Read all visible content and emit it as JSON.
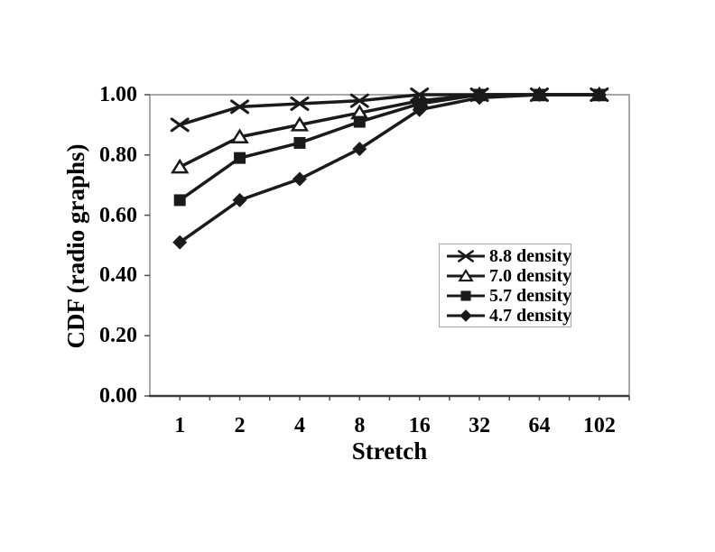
{
  "figure": {
    "background": "#ffffff"
  },
  "chart_data": {
    "type": "line",
    "title": "",
    "xlabel": "Stretch",
    "ylabel": "CDF (radio graphs)",
    "categories": [
      "1",
      "2",
      "4",
      "8",
      "16",
      "32",
      "64",
      "102"
    ],
    "y_ticks": [
      "0.00",
      "0.20",
      "0.40",
      "0.60",
      "0.80",
      "1.00"
    ],
    "ylim": [
      0,
      1
    ],
    "grid": false,
    "legend_position": "inside-right",
    "series": [
      {
        "name": "8.8 density",
        "marker": "x-cross",
        "values": [
          0.9,
          0.96,
          0.97,
          0.98,
          1.0,
          1.0,
          1.0,
          1.0
        ]
      },
      {
        "name": "7.0 density",
        "marker": "triangle-open",
        "values": [
          0.76,
          0.86,
          0.9,
          0.94,
          0.98,
          1.0,
          1.0,
          1.0
        ]
      },
      {
        "name": "5.7 density",
        "marker": "square-filled",
        "values": [
          0.65,
          0.79,
          0.84,
          0.91,
          0.97,
          1.0,
          1.0,
          1.0
        ]
      },
      {
        "name": "4.7 density",
        "marker": "diamond-filled",
        "values": [
          0.51,
          0.65,
          0.72,
          0.82,
          0.95,
          0.99,
          1.0,
          1.0
        ]
      }
    ],
    "colors": {
      "line": "#1a1a1a",
      "plot_border": "#8c8c8c",
      "axis": "#4d4d4d",
      "legend_border": "#a6a6a6",
      "text": "#000000",
      "background": "#ffffff"
    }
  }
}
